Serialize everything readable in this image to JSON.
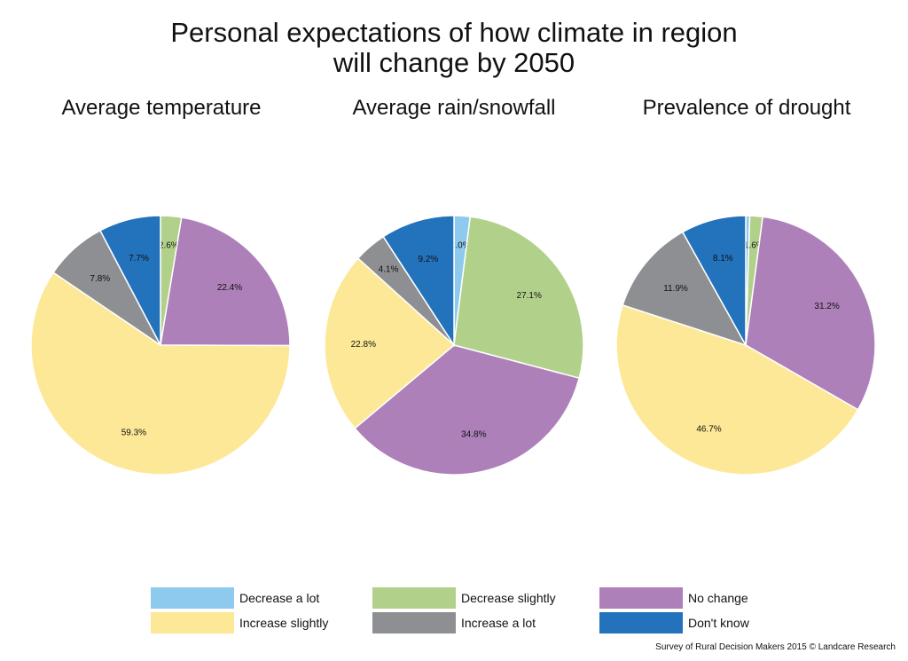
{
  "title_line1": "Personal expectations of how climate in region",
  "title_line2": "will change by 2050",
  "source": "Survey of Rural Decision Makers 2015 © Landcare Research",
  "colors": {
    "decrease_a_lot": "#8ec9ee",
    "decrease_slightly": "#b1d18a",
    "no_change": "#ad80b9",
    "increase_slightly": "#fde897",
    "increase_a_lot": "#8e8f93",
    "dont_know": "#2372bc"
  },
  "legend": [
    {
      "label": "Decrease a lot",
      "color": "#8ec9ee"
    },
    {
      "label": "Decrease slightly",
      "color": "#b1d18a"
    },
    {
      "label": "No change",
      "color": "#ad80b9"
    },
    {
      "label": "Increase slightly",
      "color": "#fde897"
    },
    {
      "label": "Increase a lot",
      "color": "#8e8f93"
    },
    {
      "label": "Don't know",
      "color": "#2372bc"
    }
  ],
  "chart_data": [
    {
      "type": "pie",
      "title": "Average temperature",
      "categories": [
        "Decrease a lot",
        "Decrease slightly",
        "No change",
        "Increase slightly",
        "Increase a lot",
        "Don't know"
      ],
      "values": [
        0,
        2.6,
        22.4,
        59.3,
        7.8,
        7.7
      ],
      "labels": [
        "",
        "2.6%",
        "22.4%",
        "59.3%",
        "7.8%",
        "7.7%"
      ]
    },
    {
      "type": "pie",
      "title": "Average rain/snowfall",
      "categories": [
        "Decrease a lot",
        "Decrease slightly",
        "No change",
        "Increase slightly",
        "Increase a lot",
        "Don't know"
      ],
      "values": [
        2.0,
        27.1,
        34.8,
        22.8,
        4.1,
        9.2
      ],
      "labels": [
        "2.0%",
        "27.1%",
        "34.8%",
        "22.8%",
        "4.1%",
        "9.2%"
      ]
    },
    {
      "type": "pie",
      "title": "Prevalence of drought",
      "categories": [
        "Decrease a lot",
        "Decrease slightly",
        "No change",
        "Increase slightly",
        "Increase a lot",
        "Don't know"
      ],
      "values": [
        0.5,
        1.6,
        31.2,
        46.7,
        11.9,
        8.1
      ],
      "labels": [
        "",
        "1.6%",
        "31.2%",
        "46.7%",
        "11.9%",
        "8.1%"
      ]
    }
  ]
}
